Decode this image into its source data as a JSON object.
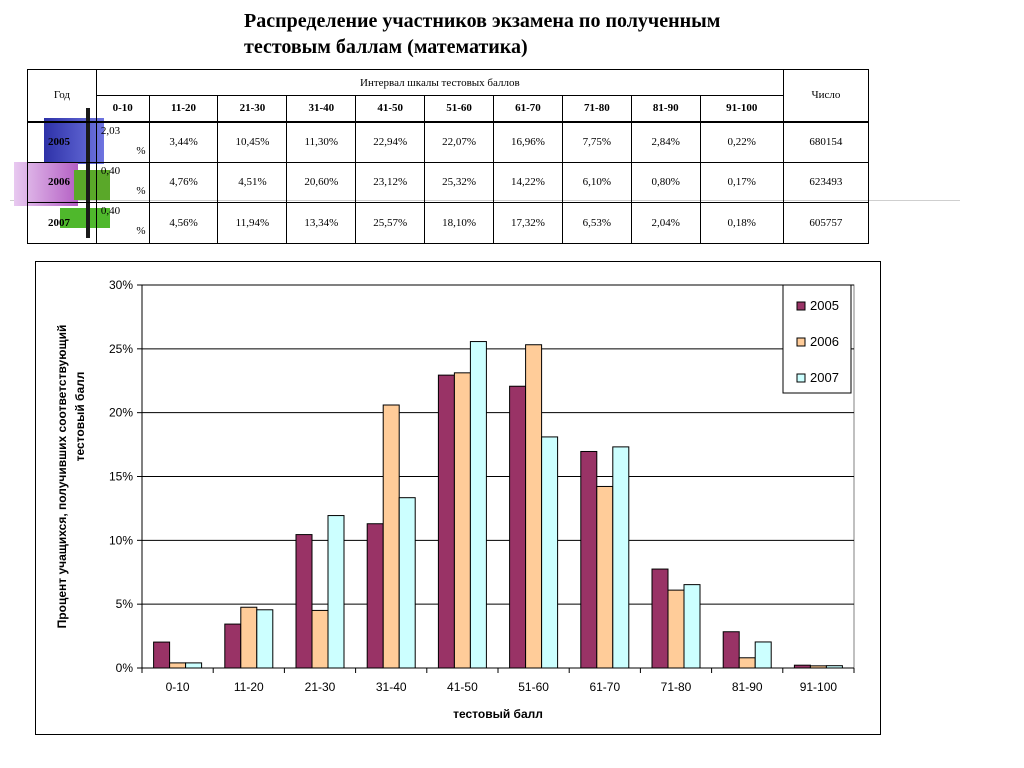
{
  "title": {
    "line1": "Распределение участников экзамена по полученным",
    "line2": "тестовым баллам (математика)"
  },
  "table": {
    "year_header": "Год",
    "interval_header": "Интервал шкалы тестовых баллов",
    "count_header": "Число",
    "intervals": [
      "0-10",
      "11-20",
      "21-30",
      "31-40",
      "41-50",
      "51-60",
      "61-70",
      "71-80",
      "81-90",
      "91-100"
    ],
    "rows": [
      {
        "year": "2005",
        "first_value": "2,03",
        "first_pct": "%",
        "values": [
          "3,44%",
          "10,45%",
          "11,30%",
          "22,94%",
          "22,07%",
          "16,96%",
          "7,75%",
          "2,84%",
          "0,22%"
        ],
        "count": "680154"
      },
      {
        "year": "2006",
        "first_value": "0,40",
        "first_pct": "%",
        "values": [
          "4,76%",
          "4,51%",
          "20,60%",
          "23,12%",
          "25,32%",
          "14,22%",
          "6,10%",
          "0,80%",
          "0,17%"
        ],
        "count": "623493"
      },
      {
        "year": "2007",
        "first_value": "0,40",
        "first_pct": "%",
        "values": [
          "4,56%",
          "11,94%",
          "13,34%",
          "25,57%",
          "18,10%",
          "17,32%",
          "6,53%",
          "2,04%",
          "0,18%"
        ],
        "count": "605757"
      }
    ]
  },
  "chart_data": {
    "type": "bar",
    "title": "",
    "xlabel": "тестовый балл",
    "ylabel_line1": "Процент учащихся, получивших соответствующий",
    "ylabel_line2": "тестовый балл",
    "ylim": [
      0,
      30
    ],
    "yticks": [
      0,
      5,
      10,
      15,
      20,
      25,
      30
    ],
    "ytick_labels": [
      "0%",
      "5%",
      "10%",
      "15%",
      "20%",
      "25%",
      "30%"
    ],
    "categories": [
      "0-10",
      "11-20",
      "21-30",
      "31-40",
      "41-50",
      "51-60",
      "61-70",
      "71-80",
      "81-90",
      "91-100"
    ],
    "series": [
      {
        "name": "2005",
        "color": "#993366",
        "values": [
          2.03,
          3.44,
          10.45,
          11.3,
          22.94,
          22.07,
          16.96,
          7.75,
          2.84,
          0.22
        ]
      },
      {
        "name": "2006",
        "color": "#ffcc99",
        "values": [
          0.4,
          4.76,
          4.51,
          20.6,
          23.12,
          25.32,
          14.22,
          6.1,
          0.8,
          0.17
        ]
      },
      {
        "name": "2007",
        "color": "#ccffff",
        "values": [
          0.4,
          4.56,
          11.94,
          13.34,
          25.57,
          18.1,
          17.32,
          6.53,
          2.04,
          0.18
        ]
      }
    ],
    "grid": true,
    "legend_position": "top-right"
  }
}
